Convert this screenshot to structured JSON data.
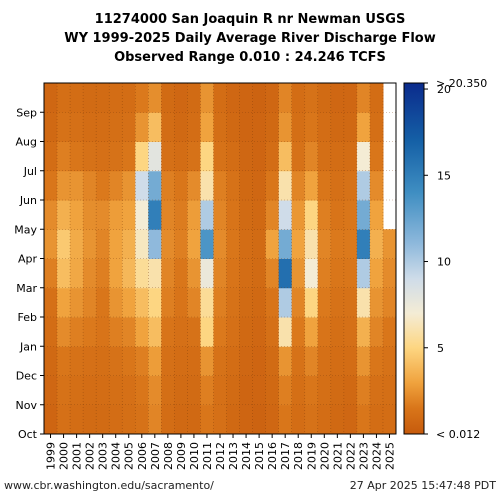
{
  "header": {
    "title_line1": "11274000 San Joaquin R nr Newman USGS",
    "title_line2": "WY 1999-2025 Daily Average River Discharge Flow",
    "title_line3": "Observed Range 0.010 : 24.246 TCFS"
  },
  "footer": {
    "url": "www.cbr.washington.edu/sacramento/",
    "timestamp": "27 Apr 2025 15:47:48 PDT"
  },
  "chart_data": {
    "type": "heatmap",
    "title": "11274000 San Joaquin R nr Newman USGS WY 1999-2025 Daily Average River Discharge Flow",
    "subtitle": "Observed Range 0.010 : 24.246 TCFS",
    "x_categories": [
      "1999",
      "2000",
      "2001",
      "2002",
      "2003",
      "2004",
      "2005",
      "2006",
      "2007",
      "2008",
      "2009",
      "2010",
      "2011",
      "2012",
      "2013",
      "2014",
      "2015",
      "2016",
      "2017",
      "2018",
      "2019",
      "2020",
      "2021",
      "2022",
      "2023",
      "2024",
      "2025"
    ],
    "y_categories": [
      "Oct",
      "Nov",
      "Dec",
      "Jan",
      "Feb",
      "Mar",
      "Apr",
      "May",
      "Jun",
      "Jul",
      "Aug",
      "Sep"
    ],
    "colorbar": {
      "ticks": [
        5,
        10,
        15,
        20
      ],
      "min_label": "< 0.012",
      "max_label": "> 20.350",
      "range": [
        0,
        20.35
      ],
      "stops": [
        {
          "v": 0,
          "color": "#c65a0c"
        },
        {
          "v": 1.5,
          "color": "#d9761a"
        },
        {
          "v": 3,
          "color": "#f0a33e"
        },
        {
          "v": 5,
          "color": "#fdd682"
        },
        {
          "v": 7,
          "color": "#f4ecd5"
        },
        {
          "v": 9,
          "color": "#cfdce9"
        },
        {
          "v": 11,
          "color": "#8fb9dc"
        },
        {
          "v": 14,
          "color": "#3f8ec2"
        },
        {
          "v": 17,
          "color": "#1560a6"
        },
        {
          "v": 20.35,
          "color": "#0b2b8c"
        }
      ]
    },
    "values": [
      [
        0.6,
        0.7,
        0.8,
        1.0,
        1.2,
        1.8,
        2.5,
        2.2,
        1.5,
        1.0,
        0.8,
        0.7
      ],
      [
        1.2,
        1.3,
        1.5,
        2.2,
        3.0,
        4.0,
        4.5,
        3.5,
        2.5,
        1.8,
        1.3,
        1.1
      ],
      [
        1.0,
        1.1,
        1.3,
        1.8,
        2.5,
        3.2,
        3.3,
        3.0,
        2.5,
        1.5,
        1.2,
        1.0
      ],
      [
        0.9,
        1.0,
        1.2,
        1.6,
        2.0,
        2.2,
        2.5,
        2.3,
        2.0,
        1.3,
        1.0,
        0.9
      ],
      [
        0.9,
        1.0,
        1.1,
        1.4,
        1.5,
        1.8,
        2.0,
        2.2,
        1.6,
        1.2,
        1.0,
        0.9
      ],
      [
        1.0,
        1.1,
        1.3,
        1.8,
        2.5,
        3.0,
        3.0,
        2.8,
        2.0,
        1.3,
        1.1,
        1.0
      ],
      [
        1.1,
        1.2,
        1.5,
        2.0,
        3.0,
        3.8,
        3.5,
        3.0,
        2.5,
        1.5,
        1.2,
        1.0
      ],
      [
        1.3,
        1.5,
        1.8,
        3.0,
        4.0,
        5.5,
        6.5,
        7.0,
        9.0,
        5.0,
        2.5,
        1.6
      ],
      [
        2.0,
        2.2,
        2.8,
        4.0,
        5.0,
        6.0,
        11.0,
        15.0,
        12.0,
        8.0,
        4.0,
        2.3
      ],
      [
        1.0,
        1.1,
        1.2,
        1.4,
        1.8,
        2.0,
        2.2,
        2.0,
        1.8,
        1.2,
        1.0,
        0.9
      ],
      [
        0.8,
        0.9,
        1.0,
        1.2,
        1.4,
        1.5,
        1.8,
        1.7,
        1.5,
        1.0,
        0.8,
        0.7
      ],
      [
        0.8,
        0.9,
        1.0,
        1.3,
        2.0,
        2.5,
        3.0,
        2.8,
        2.2,
        1.3,
        1.0,
        0.9
      ],
      [
        1.5,
        1.8,
        2.5,
        5.0,
        5.5,
        7.5,
        13.5,
        10.0,
        6.0,
        5.0,
        3.0,
        2.5
      ],
      [
        1.2,
        1.2,
        1.3,
        1.6,
        1.8,
        2.0,
        2.2,
        2.0,
        1.8,
        1.3,
        1.1,
        1.0
      ],
      [
        0.8,
        0.9,
        1.0,
        1.2,
        1.3,
        1.4,
        1.5,
        1.4,
        1.3,
        1.0,
        0.8,
        0.7
      ],
      [
        0.6,
        0.6,
        0.7,
        0.8,
        0.9,
        1.0,
        1.0,
        0.9,
        0.8,
        0.7,
        0.6,
        0.6
      ],
      [
        0.5,
        0.6,
        0.6,
        0.7,
        0.8,
        0.9,
        0.9,
        0.8,
        0.7,
        0.6,
        0.6,
        0.5
      ],
      [
        0.7,
        0.8,
        0.9,
        1.2,
        1.4,
        2.0,
        3.0,
        2.0,
        1.5,
        1.0,
        0.8,
        0.7
      ],
      [
        1.5,
        1.8,
        2.5,
        6.0,
        10.0,
        16.0,
        12.0,
        9.0,
        6.0,
        4.0,
        2.5,
        2.0
      ],
      [
        1.0,
        1.1,
        1.3,
        1.6,
        2.0,
        2.5,
        3.0,
        2.6,
        2.0,
        1.3,
        1.1,
        1.0
      ],
      [
        1.3,
        1.5,
        2.0,
        3.0,
        5.0,
        7.0,
        6.0,
        5.0,
        3.0,
        2.0,
        1.5,
        1.3
      ],
      [
        1.0,
        1.1,
        1.2,
        1.4,
        1.6,
        1.8,
        2.0,
        1.8,
        1.5,
        1.1,
        1.0,
        0.9
      ],
      [
        0.8,
        0.9,
        1.0,
        1.1,
        1.3,
        1.5,
        1.6,
        1.4,
        1.2,
        1.0,
        0.8,
        0.7
      ],
      [
        0.7,
        0.8,
        1.0,
        1.2,
        1.3,
        1.5,
        1.6,
        1.5,
        1.3,
        1.0,
        0.8,
        0.7
      ],
      [
        1.5,
        1.8,
        2.5,
        3.5,
        6.0,
        10.0,
        15.0,
        12.0,
        10.0,
        7.0,
        3.0,
        2.0
      ],
      [
        1.0,
        1.2,
        1.5,
        2.0,
        2.5,
        3.0,
        3.5,
        3.0,
        2.2,
        1.5,
        1.1,
        1.0
      ],
      [
        1.0,
        1.1,
        1.3,
        1.5,
        2.0,
        2.2,
        2.5,
        null,
        null,
        null,
        null,
        null
      ]
    ],
    "grid": true
  }
}
